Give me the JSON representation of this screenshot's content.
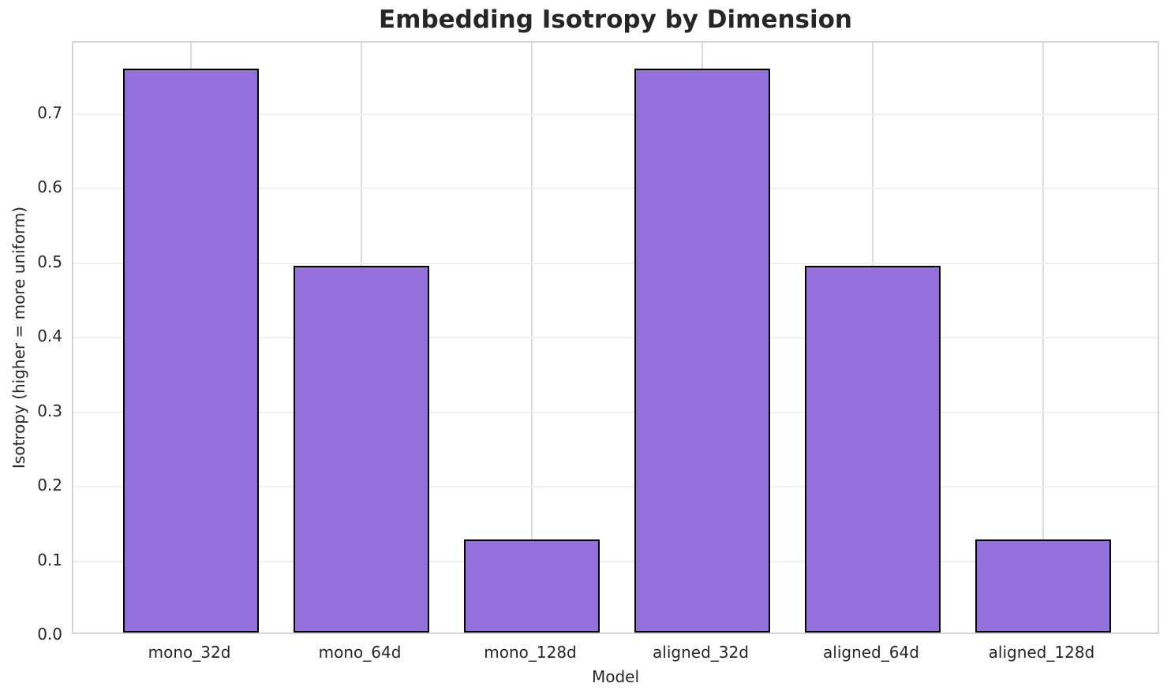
{
  "chart_data": {
    "type": "bar",
    "title": "Embedding Isotropy by Dimension",
    "xlabel": "Model",
    "ylabel": "Isotropy (higher = more uniform)",
    "categories": [
      "mono_32d",
      "mono_64d",
      "mono_128d",
      "aligned_32d",
      "aligned_64d",
      "aligned_128d"
    ],
    "values": [
      0.757,
      0.492,
      0.125,
      0.757,
      0.492,
      0.125
    ],
    "ylim": [
      0,
      0.796
    ],
    "yticks": [
      0.0,
      0.1,
      0.2,
      0.3,
      0.4,
      0.5,
      0.6,
      0.7
    ],
    "ytick_labels": [
      "0.0",
      "0.1",
      "0.2",
      "0.3",
      "0.4",
      "0.5",
      "0.6",
      "0.7"
    ],
    "grid": true,
    "legend_position": "none",
    "bar_fill_color": "#9370DB",
    "bar_edge_color": "#000000",
    "gridline_h_color": "#f0f0f0",
    "gridline_v_color": "#dcdcdc",
    "spine_color": "#d4d4d4",
    "text_color": "#262626"
  }
}
